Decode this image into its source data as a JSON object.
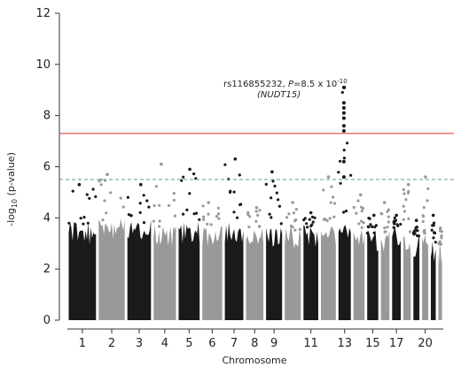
{
  "chart_data": {
    "type": "scatter",
    "ylabel_prefix": "-log",
    "ylabel_sub": "10",
    "ylabel_suffix": " (p-value)",
    "xlabel": "Chromosome",
    "ylim": [
      0,
      12
    ],
    "y_ticks": [
      "0",
      "2",
      "4",
      "6",
      "8",
      "10",
      "12"
    ],
    "x_tick_labels": [
      "1",
      "2",
      "3",
      "4",
      "5",
      "6",
      "7",
      "8",
      "9",
      "11",
      "13",
      "15",
      "17",
      "20"
    ],
    "genome_wide_threshold": 7.3,
    "suggestive_threshold": 5.5,
    "annotation": {
      "snp": "rs116855232, ",
      "p_label": "P",
      "p_value": "=8.5 x 10",
      "p_exponent": "-10",
      "gene": "(NUDT15)"
    },
    "colors": {
      "odd_chromosome": "#1a1a1a",
      "even_chromosome": "#999999",
      "genome_wide_line": "#e05a5a",
      "suggestive_line": "#6aaba0"
    },
    "chromosomes": [
      {
        "chr": 1,
        "max": 5.3,
        "body": 3.4
      },
      {
        "chr": 2,
        "max": 5.7,
        "body": 3.6
      },
      {
        "chr": 3,
        "max": 5.3,
        "body": 3.5
      },
      {
        "chr": 4,
        "max": 6.1,
        "body": 3.3
      },
      {
        "chr": 5,
        "max": 5.9,
        "body": 3.4
      },
      {
        "chr": 6,
        "max": 4.6,
        "body": 3.3
      },
      {
        "chr": 7,
        "max": 6.3,
        "body": 3.4
      },
      {
        "chr": 8,
        "max": 4.4,
        "body": 3.3
      },
      {
        "chr": 9,
        "max": 5.8,
        "body": 3.2
      },
      {
        "chr": 10,
        "max": 4.6,
        "body": 3.2
      },
      {
        "chr": 11,
        "max": 4.2,
        "body": 3.3
      },
      {
        "chr": 12,
        "max": 5.6,
        "body": 3.4
      },
      {
        "chr": 13,
        "max": 9.1,
        "body": 3.5
      },
      {
        "chr": 14,
        "max": 4.9,
        "body": 3.2
      },
      {
        "chr": 15,
        "max": 4.1,
        "body": 3.1
      },
      {
        "chr": 16,
        "max": 4.6,
        "body": 3.1
      },
      {
        "chr": 17,
        "max": 4.1,
        "body": 3.2
      },
      {
        "chr": 18,
        "max": 5.3,
        "body": 3.0
      },
      {
        "chr": 19,
        "max": 3.9,
        "body": 2.9
      },
      {
        "chr": 20,
        "max": 5.6,
        "body": 3.0
      },
      {
        "chr": 21,
        "max": 4.1,
        "body": 2.7
      },
      {
        "chr": 22,
        "max": 3.6,
        "body": 2.6
      }
    ],
    "lead_signal_points": [
      {
        "chr": 13,
        "y": 9.1
      },
      {
        "chr": 13,
        "y": 8.5
      },
      {
        "chr": 13,
        "y": 8.3
      },
      {
        "chr": 13,
        "y": 8.1
      },
      {
        "chr": 13,
        "y": 7.9
      },
      {
        "chr": 13,
        "y": 7.6
      },
      {
        "chr": 13,
        "y": 7.4
      },
      {
        "chr": 13,
        "y": 6.2
      },
      {
        "chr": 13,
        "y": 5.6
      }
    ]
  }
}
